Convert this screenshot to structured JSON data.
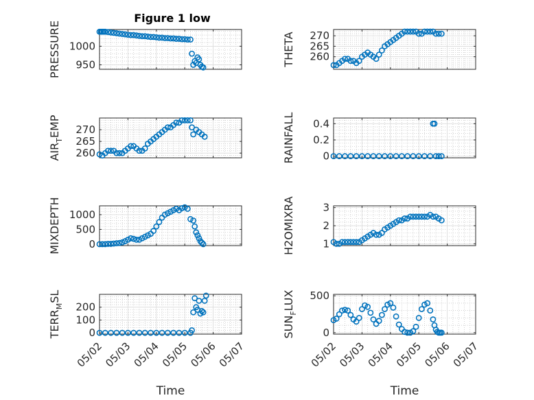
{
  "title": "Figure 1 low",
  "colors": {
    "marker": "#0072BD",
    "axis": "#262626",
    "grid": "#bfbfbf",
    "background": "#ffffff"
  },
  "chart_data": [
    {
      "type": "scatter",
      "title": "Figure 1 low",
      "ylabel": "PRESSURE",
      "xlabel": "",
      "xlim": [
        0,
        5
      ],
      "xticks": [
        0,
        1,
        2,
        3,
        4,
        5
      ],
      "xticklabels": [
        "05/02",
        "05/03",
        "05/04",
        "05/05",
        "05/06",
        "05/07"
      ],
      "show_xticklabels": false,
      "ylim": [
        938,
        1045
      ],
      "yticks": [
        950,
        1000
      ],
      "grid": true,
      "minor_grid": true,
      "series": [
        {
          "x": [
            0,
            0.05,
            0.1,
            0.15,
            0.2,
            0.3,
            0.4,
            0.5,
            0.6,
            0.7,
            0.8,
            0.9,
            1.0,
            1.1,
            1.2,
            1.3,
            1.4,
            1.5,
            1.6,
            1.7,
            1.8,
            1.9,
            2.0,
            2.1,
            2.2,
            2.3,
            2.4,
            2.5,
            2.6,
            2.7,
            2.8,
            2.9,
            3.0,
            3.1,
            3.2,
            3.25,
            3.3,
            3.35,
            3.4,
            3.45,
            3.5,
            3.55,
            3.6,
            3.65
          ],
          "y": [
            1039,
            1039,
            1039,
            1039,
            1039,
            1038,
            1037,
            1036,
            1035,
            1034,
            1033,
            1032,
            1031,
            1030,
            1030,
            1029,
            1028,
            1027,
            1027,
            1026,
            1025,
            1025,
            1024,
            1023,
            1023,
            1022,
            1022,
            1021,
            1021,
            1020,
            1020,
            1019,
            1019,
            1018,
            1018,
            980,
            950,
            960,
            955,
            970,
            965,
            950,
            945,
            943
          ]
        }
      ]
    },
    {
      "type": "scatter",
      "ylabel": "THETA",
      "xlabel": "",
      "xlim": [
        0,
        5
      ],
      "xticks": [
        0,
        1,
        2,
        3,
        4,
        5
      ],
      "xticklabels": [
        "05/02",
        "05/03",
        "05/04",
        "05/05",
        "05/06",
        "05/07"
      ],
      "show_xticklabels": false,
      "ylim": [
        254,
        273
      ],
      "yticks": [
        260,
        265,
        270
      ],
      "grid": true,
      "minor_grid": true,
      "series": [
        {
          "x": [
            0,
            0.1,
            0.2,
            0.3,
            0.4,
            0.5,
            0.6,
            0.7,
            0.8,
            0.9,
            1.0,
            1.1,
            1.2,
            1.3,
            1.4,
            1.5,
            1.6,
            1.7,
            1.8,
            1.9,
            2.0,
            2.1,
            2.2,
            2.3,
            2.4,
            2.5,
            2.6,
            2.7,
            2.8,
            2.9,
            3.0,
            3.1,
            3.2,
            3.3,
            3.4,
            3.5,
            3.6,
            3.7,
            3.8
          ],
          "y": [
            256,
            256,
            257,
            258,
            259,
            259,
            258,
            258,
            257,
            258,
            260,
            261,
            262,
            261,
            260,
            259,
            261,
            263,
            265,
            266,
            267,
            268,
            269,
            270,
            271,
            272,
            272,
            272,
            272,
            272,
            271,
            271,
            272,
            272,
            272,
            272,
            271,
            271,
            271
          ]
        }
      ]
    },
    {
      "type": "scatter",
      "ylabel": "AIR_TEMP",
      "xlabel": "",
      "xlim": [
        0,
        5
      ],
      "xticks": [
        0,
        1,
        2,
        3,
        4,
        5
      ],
      "xticklabels": [
        "05/02",
        "05/03",
        "05/04",
        "05/05",
        "05/06",
        "05/07"
      ],
      "show_xticklabels": false,
      "ylim": [
        258,
        275
      ],
      "yticks": [
        260,
        265,
        270
      ],
      "grid": true,
      "minor_grid": true,
      "series": [
        {
          "x": [
            0,
            0.1,
            0.2,
            0.3,
            0.4,
            0.5,
            0.6,
            0.7,
            0.8,
            0.9,
            1.0,
            1.1,
            1.2,
            1.3,
            1.4,
            1.5,
            1.6,
            1.7,
            1.8,
            1.9,
            2.0,
            2.1,
            2.2,
            2.3,
            2.4,
            2.5,
            2.6,
            2.7,
            2.8,
            2.9,
            3.0,
            3.1,
            3.2,
            3.25,
            3.3,
            3.4,
            3.5,
            3.6,
            3.7
          ],
          "y": [
            259.5,
            259,
            260,
            261,
            261,
            261,
            260,
            260,
            260,
            261,
            262,
            263,
            263,
            262,
            261,
            261,
            262,
            264,
            265,
            266,
            267,
            268,
            269,
            270,
            271,
            271,
            272,
            273,
            273,
            274,
            274,
            274,
            274,
            271,
            268,
            270,
            269,
            268,
            267
          ]
        }
      ]
    },
    {
      "type": "scatter",
      "ylabel": "RAINFALL",
      "xlabel": "",
      "xlim": [
        0,
        5
      ],
      "xticks": [
        0,
        1,
        2,
        3,
        4,
        5
      ],
      "xticklabels": [
        "05/02",
        "05/03",
        "05/04",
        "05/05",
        "05/06",
        "05/07"
      ],
      "show_xticklabels": false,
      "ylim": [
        -0.02,
        0.47
      ],
      "yticks": [
        0,
        0.2,
        0.4
      ],
      "grid": true,
      "minor_grid": true,
      "series": [
        {
          "x": [
            0,
            0.2,
            0.4,
            0.6,
            0.8,
            1.0,
            1.2,
            1.4,
            1.6,
            1.8,
            2.0,
            2.2,
            2.4,
            2.6,
            2.8,
            3.0,
            3.2,
            3.4,
            3.5,
            3.55,
            3.6,
            3.7,
            3.8
          ],
          "y": [
            0,
            0,
            0,
            0,
            0,
            0,
            0,
            0,
            0,
            0,
            0,
            0,
            0,
            0,
            0,
            0,
            0,
            0,
            0.4,
            0.4,
            0,
            0,
            0
          ]
        }
      ]
    },
    {
      "type": "scatter",
      "ylabel": "MIXDEPTH",
      "xlabel": "",
      "xlim": [
        0,
        5
      ],
      "xticks": [
        0,
        1,
        2,
        3,
        4,
        5
      ],
      "xticklabels": [
        "05/02",
        "05/03",
        "05/04",
        "05/05",
        "05/06",
        "05/07"
      ],
      "show_xticklabels": false,
      "ylim": [
        -50,
        1300
      ],
      "yticks": [
        0,
        500,
        1000
      ],
      "grid": true,
      "minor_grid": true,
      "series": [
        {
          "x": [
            0,
            0.1,
            0.2,
            0.3,
            0.4,
            0.5,
            0.6,
            0.7,
            0.8,
            0.9,
            1.0,
            1.1,
            1.2,
            1.3,
            1.4,
            1.5,
            1.6,
            1.7,
            1.8,
            1.9,
            2.0,
            2.1,
            2.2,
            2.3,
            2.4,
            2.5,
            2.6,
            2.7,
            2.8,
            2.9,
            3.0,
            3.1,
            3.2,
            3.3,
            3.35,
            3.4,
            3.45,
            3.5,
            3.55,
            3.6,
            3.65
          ],
          "y": [
            0,
            0,
            0,
            10,
            10,
            20,
            30,
            40,
            60,
            100,
            150,
            200,
            180,
            150,
            150,
            200,
            250,
            300,
            350,
            450,
            600,
            750,
            900,
            1000,
            1050,
            1100,
            1150,
            1200,
            1150,
            1220,
            1250,
            1200,
            850,
            800,
            600,
            400,
            300,
            200,
            100,
            50,
            0
          ]
        }
      ]
    },
    {
      "type": "scatter",
      "ylabel": "H2OMIXRA",
      "xlabel": "",
      "xlim": [
        0,
        5
      ],
      "xticks": [
        0,
        1,
        2,
        3,
        4,
        5
      ],
      "xticklabels": [
        "05/02",
        "05/03",
        "05/04",
        "05/05",
        "05/06",
        "05/07"
      ],
      "show_xticklabels": false,
      "ylim": [
        0.9,
        3.1
      ],
      "yticks": [
        1,
        2,
        3
      ],
      "grid": true,
      "minor_grid": true,
      "series": [
        {
          "x": [
            0,
            0.1,
            0.2,
            0.3,
            0.4,
            0.5,
            0.6,
            0.7,
            0.8,
            0.9,
            1.0,
            1.1,
            1.2,
            1.3,
            1.4,
            1.5,
            1.6,
            1.7,
            1.8,
            1.9,
            2.0,
            2.1,
            2.2,
            2.3,
            2.4,
            2.5,
            2.6,
            2.7,
            2.8,
            2.9,
            3.0,
            3.1,
            3.2,
            3.3,
            3.4,
            3.5,
            3.6,
            3.7,
            3.8
          ],
          "y": [
            1.1,
            1.0,
            1.0,
            1.1,
            1.1,
            1.1,
            1.1,
            1.1,
            1.1,
            1.1,
            1.2,
            1.3,
            1.4,
            1.5,
            1.6,
            1.5,
            1.5,
            1.6,
            1.8,
            1.9,
            2.0,
            2.1,
            2.2,
            2.3,
            2.3,
            2.4,
            2.4,
            2.5,
            2.5,
            2.5,
            2.5,
            2.5,
            2.5,
            2.5,
            2.6,
            2.5,
            2.5,
            2.4,
            2.3
          ]
        }
      ]
    },
    {
      "type": "scatter",
      "ylabel": "TERR_MSL",
      "xlabel": "Time",
      "xlim": [
        0,
        5
      ],
      "xticks": [
        0,
        1,
        2,
        3,
        4,
        5
      ],
      "xticklabels": [
        "05/02",
        "05/03",
        "05/04",
        "05/05",
        "05/06",
        "05/07"
      ],
      "show_xticklabels": true,
      "ylim": [
        -10,
        300
      ],
      "yticks": [
        0,
        100,
        200
      ],
      "grid": true,
      "minor_grid": true,
      "series": [
        {
          "x": [
            0,
            0.2,
            0.4,
            0.6,
            0.8,
            1.0,
            1.2,
            1.4,
            1.6,
            1.8,
            2.0,
            2.2,
            2.4,
            2.6,
            2.8,
            3.0,
            3.2,
            3.25,
            3.3,
            3.35,
            3.4,
            3.45,
            3.5,
            3.55,
            3.6,
            3.65,
            3.7,
            3.75
          ],
          "y": [
            0,
            0,
            0,
            0,
            0,
            0,
            0,
            0,
            0,
            0,
            0,
            0,
            0,
            0,
            0,
            0,
            0,
            20,
            160,
            270,
            200,
            180,
            250,
            150,
            170,
            160,
            250,
            290
          ]
        }
      ]
    },
    {
      "type": "scatter",
      "ylabel": "SUN_FLUX",
      "xlabel": "Time",
      "xlim": [
        0,
        5
      ],
      "xticks": [
        0,
        1,
        2,
        3,
        4,
        5
      ],
      "xticklabels": [
        "05/02",
        "05/03",
        "05/04",
        "05/05",
        "05/06",
        "05/07"
      ],
      "show_xticklabels": true,
      "ylim": [
        -20,
        520
      ],
      "yticks": [
        0,
        500
      ],
      "grid": true,
      "minor_grid": true,
      "series": [
        {
          "x": [
            0,
            0.1,
            0.2,
            0.3,
            0.4,
            0.5,
            0.6,
            0.7,
            0.8,
            0.9,
            1.0,
            1.1,
            1.2,
            1.3,
            1.4,
            1.5,
            1.6,
            1.7,
            1.8,
            1.9,
            2.0,
            2.1,
            2.2,
            2.3,
            2.4,
            2.5,
            2.6,
            2.7,
            2.8,
            2.9,
            3.0,
            3.1,
            3.2,
            3.3,
            3.4,
            3.5,
            3.55,
            3.6,
            3.65,
            3.7,
            3.75,
            3.8
          ],
          "y": [
            170,
            190,
            250,
            300,
            310,
            300,
            240,
            180,
            150,
            200,
            320,
            370,
            350,
            270,
            180,
            120,
            160,
            240,
            320,
            380,
            400,
            340,
            220,
            110,
            50,
            10,
            0,
            0,
            20,
            80,
            200,
            320,
            380,
            400,
            300,
            180,
            100,
            40,
            10,
            0,
            0,
            0
          ]
        }
      ]
    }
  ]
}
